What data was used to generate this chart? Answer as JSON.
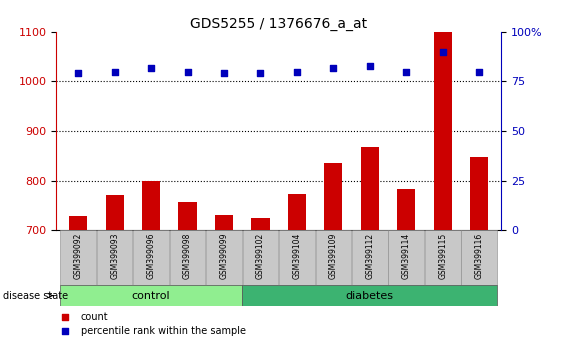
{
  "title": "GDS5255 / 1376676_a_at",
  "samples": [
    "GSM399092",
    "GSM399093",
    "GSM399096",
    "GSM399098",
    "GSM399099",
    "GSM399102",
    "GSM399104",
    "GSM399109",
    "GSM399112",
    "GSM399114",
    "GSM399115",
    "GSM399116"
  ],
  "counts": [
    728,
    770,
    800,
    757,
    730,
    724,
    773,
    835,
    868,
    782,
    1100,
    847
  ],
  "percentiles": [
    79,
    80,
    82,
    80,
    79,
    79,
    80,
    82,
    83,
    80,
    90,
    80
  ],
  "groups": [
    "control",
    "control",
    "control",
    "control",
    "control",
    "diabetes",
    "diabetes",
    "diabetes",
    "diabetes",
    "diabetes",
    "diabetes",
    "diabetes"
  ],
  "control_color": "#90EE90",
  "diabetes_color": "#3CB371",
  "bar_color": "#CC0000",
  "dot_color": "#0000BB",
  "ylim_left": [
    700,
    1100
  ],
  "ylim_right": [
    0,
    100
  ],
  "yticks_left": [
    700,
    800,
    900,
    1000,
    1100
  ],
  "yticks_right": [
    0,
    25,
    50,
    75,
    100
  ],
  "grid_values": [
    800,
    900,
    1000
  ],
  "background_color": "#ffffff",
  "tick_label_color_left": "#CC0000",
  "tick_label_color_right": "#0000BB",
  "legend_count_label": "count",
  "legend_percentile_label": "percentile rank within the sample",
  "disease_state_label": "disease state",
  "n_control": 5,
  "n_diabetes": 7
}
